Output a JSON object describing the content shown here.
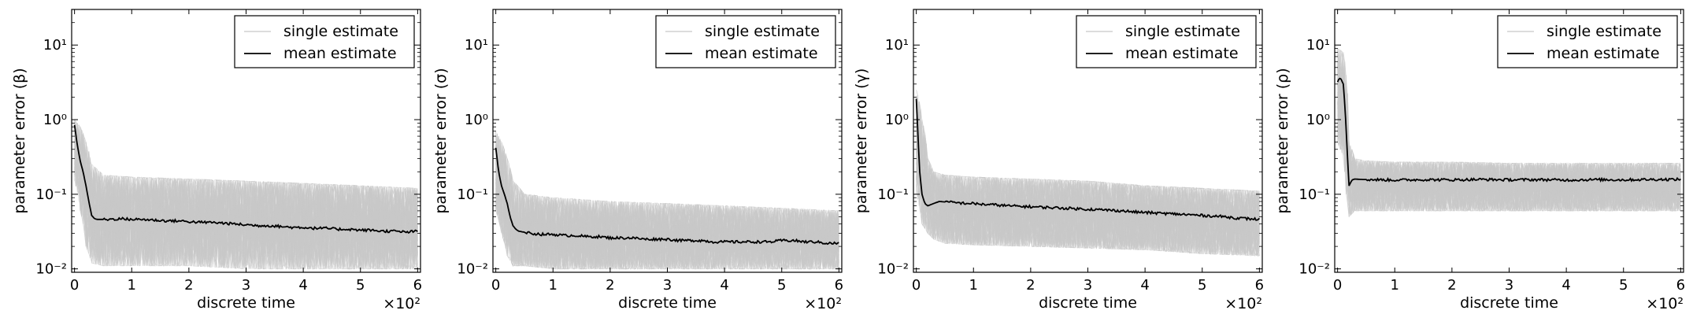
{
  "figure": {
    "colors": {
      "single": "#c8c8c8",
      "mean": "#000000",
      "axes": "#000000",
      "legend_edge": "#000000"
    }
  },
  "chart_data": [
    {
      "type": "line",
      "xlabel": "discrete time",
      "ylabel": "parameter error (β)",
      "x_multiplier_label": "×10²",
      "xlim": [
        -0.05,
        6.05
      ],
      "ylim": [
        0.009,
        30
      ],
      "yscale": "log",
      "xticks": [
        0,
        1,
        2,
        3,
        4,
        5,
        6
      ],
      "xtick_labels": [
        "0",
        "1",
        "2",
        "3",
        "4",
        "5",
        "6"
      ],
      "yticks": [
        0.01,
        0.1,
        1,
        10
      ],
      "ytick_labels": [
        "10⁻²",
        "10⁻¹",
        "10⁰",
        "10¹"
      ],
      "legend": {
        "position": "upper right",
        "entries": [
          "single estimate",
          "mean estimate"
        ]
      },
      "series": [
        {
          "name": "mean estimate",
          "x": [
            0.0,
            0.05,
            0.1,
            0.15,
            0.2,
            0.25,
            0.3,
            0.35,
            0.4,
            0.6,
            0.8,
            1.0,
            1.2,
            1.4,
            1.6,
            1.8,
            2.0,
            2.2,
            2.4,
            2.6,
            2.8,
            3.0,
            3.2,
            3.4,
            3.6,
            3.8,
            4.0,
            4.2,
            4.4,
            4.6,
            4.8,
            5.0,
            5.2,
            5.4,
            5.6,
            5.8,
            6.0
          ],
          "y": [
            0.85,
            0.45,
            0.28,
            0.2,
            0.13,
            0.08,
            0.052,
            0.047,
            0.046,
            0.046,
            0.047,
            0.046,
            0.046,
            0.045,
            0.044,
            0.044,
            0.043,
            0.042,
            0.042,
            0.041,
            0.04,
            0.039,
            0.038,
            0.038,
            0.037,
            0.036,
            0.036,
            0.035,
            0.035,
            0.034,
            0.034,
            0.033,
            0.033,
            0.032,
            0.032,
            0.031,
            0.032
          ]
        },
        {
          "name": "single estimate",
          "band_x": [
            0.0,
            0.1,
            0.2,
            0.3,
            0.5,
            1.0,
            2.0,
            3.0,
            4.0,
            5.0,
            6.0
          ],
          "band_low": [
            0.15,
            0.06,
            0.02,
            0.012,
            0.011,
            0.011,
            0.011,
            0.01,
            0.01,
            0.01,
            0.01
          ],
          "band_high": [
            1.0,
            0.8,
            0.5,
            0.25,
            0.18,
            0.17,
            0.16,
            0.15,
            0.14,
            0.13,
            0.12
          ],
          "count": 100
        }
      ]
    },
    {
      "type": "line",
      "xlabel": "discrete time",
      "ylabel": "parameter error (σ)",
      "x_multiplier_label": "×10²",
      "xlim": [
        -0.05,
        6.05
      ],
      "ylim": [
        0.009,
        30
      ],
      "yscale": "log",
      "xticks": [
        0,
        1,
        2,
        3,
        4,
        5,
        6
      ],
      "xtick_labels": [
        "0",
        "1",
        "2",
        "3",
        "4",
        "5",
        "6"
      ],
      "yticks": [
        0.01,
        0.1,
        1,
        10
      ],
      "ytick_labels": [
        "10⁻²",
        "10⁻¹",
        "10⁰",
        "10¹"
      ],
      "legend": {
        "position": "upper right",
        "entries": [
          "single estimate",
          "mean estimate"
        ]
      },
      "series": [
        {
          "name": "mean estimate",
          "x": [
            0.0,
            0.05,
            0.1,
            0.15,
            0.2,
            0.25,
            0.3,
            0.35,
            0.4,
            0.6,
            0.8,
            1.0,
            1.2,
            1.4,
            1.6,
            1.8,
            2.0,
            2.2,
            2.4,
            2.6,
            2.8,
            3.0,
            3.2,
            3.4,
            3.6,
            3.8,
            4.0,
            4.2,
            4.4,
            4.6,
            4.8,
            5.0,
            5.2,
            5.4,
            5.6,
            5.8,
            6.0
          ],
          "y": [
            0.42,
            0.2,
            0.13,
            0.1,
            0.075,
            0.05,
            0.038,
            0.034,
            0.032,
            0.03,
            0.029,
            0.029,
            0.028,
            0.028,
            0.027,
            0.027,
            0.026,
            0.026,
            0.026,
            0.025,
            0.025,
            0.025,
            0.024,
            0.024,
            0.024,
            0.023,
            0.023,
            0.023,
            0.023,
            0.023,
            0.023,
            0.024,
            0.024,
            0.023,
            0.023,
            0.022,
            0.022
          ]
        },
        {
          "name": "single estimate",
          "band_x": [
            0.0,
            0.1,
            0.2,
            0.3,
            0.5,
            1.0,
            2.0,
            3.0,
            4.0,
            5.0,
            6.0
          ],
          "band_low": [
            0.06,
            0.03,
            0.015,
            0.011,
            0.011,
            0.01,
            0.01,
            0.01,
            0.01,
            0.01,
            0.01
          ],
          "band_high": [
            0.7,
            0.5,
            0.3,
            0.15,
            0.1,
            0.09,
            0.08,
            0.075,
            0.07,
            0.065,
            0.06
          ]
        }
      ]
    },
    {
      "type": "line",
      "xlabel": "discrete time",
      "ylabel": "parameter error (γ)",
      "x_multiplier_label": "×10²",
      "xlim": [
        -0.05,
        6.05
      ],
      "ylim": [
        0.009,
        30
      ],
      "yscale": "log",
      "xticks": [
        0,
        1,
        2,
        3,
        4,
        5,
        6
      ],
      "xtick_labels": [
        "0",
        "1",
        "2",
        "3",
        "4",
        "5",
        "6"
      ],
      "yticks": [
        0.01,
        0.1,
        1,
        10
      ],
      "ytick_labels": [
        "10⁻²",
        "10⁻¹",
        "10⁰",
        "10¹"
      ],
      "legend": {
        "position": "upper right",
        "entries": [
          "single estimate",
          "mean estimate"
        ]
      },
      "series": [
        {
          "name": "mean estimate",
          "x": [
            0.0,
            0.03,
            0.06,
            0.1,
            0.15,
            0.2,
            0.3,
            0.4,
            0.6,
            0.8,
            1.0,
            1.2,
            1.4,
            1.6,
            1.8,
            2.0,
            2.2,
            2.4,
            2.6,
            2.8,
            3.0,
            3.2,
            3.4,
            3.6,
            3.8,
            4.0,
            4.2,
            4.4,
            4.6,
            4.8,
            5.0,
            5.2,
            5.4,
            5.6,
            5.8,
            6.0
          ],
          "y": [
            1.9,
            0.6,
            0.2,
            0.1,
            0.075,
            0.07,
            0.075,
            0.08,
            0.078,
            0.076,
            0.075,
            0.073,
            0.072,
            0.07,
            0.069,
            0.068,
            0.067,
            0.066,
            0.065,
            0.064,
            0.063,
            0.062,
            0.061,
            0.06,
            0.058,
            0.057,
            0.056,
            0.055,
            0.054,
            0.053,
            0.052,
            0.051,
            0.05,
            0.048,
            0.047,
            0.046
          ]
        },
        {
          "name": "single estimate",
          "band_x": [
            0.0,
            0.1,
            0.2,
            0.3,
            0.5,
            1.0,
            2.0,
            3.0,
            4.0,
            5.0,
            6.0
          ],
          "band_low": [
            0.1,
            0.04,
            0.03,
            0.025,
            0.022,
            0.021,
            0.02,
            0.019,
            0.018,
            0.016,
            0.015
          ],
          "band_high": [
            2.5,
            1.0,
            0.3,
            0.2,
            0.18,
            0.17,
            0.16,
            0.15,
            0.13,
            0.12,
            0.11
          ]
        }
      ]
    },
    {
      "type": "line",
      "xlabel": "discrete time",
      "ylabel": "parameter error (ρ)",
      "x_multiplier_label": "×10²",
      "xlim": [
        -0.05,
        6.05
      ],
      "ylim": [
        0.009,
        30
      ],
      "yscale": "log",
      "xticks": [
        0,
        1,
        2,
        3,
        4,
        5,
        6
      ],
      "xtick_labels": [
        "0",
        "1",
        "2",
        "3",
        "4",
        "5",
        "6"
      ],
      "yticks": [
        0.01,
        0.1,
        1,
        10
      ],
      "ytick_labels": [
        "10⁻²",
        "10⁻¹",
        "10⁰",
        "10¹"
      ],
      "legend": {
        "position": "upper right",
        "entries": [
          "single estimate",
          "mean estimate"
        ]
      },
      "series": [
        {
          "name": "mean estimate",
          "x": [
            0.0,
            0.03,
            0.06,
            0.1,
            0.13,
            0.16,
            0.2,
            0.25,
            0.3,
            0.4,
            0.6,
            1.0,
            1.5,
            2.0,
            2.5,
            3.0,
            3.5,
            4.0,
            4.5,
            5.0,
            5.5,
            6.0
          ],
          "y": [
            3.2,
            3.6,
            3.5,
            3.0,
            1.5,
            0.5,
            0.13,
            0.155,
            0.16,
            0.158,
            0.157,
            0.155,
            0.157,
            0.156,
            0.158,
            0.156,
            0.157,
            0.155,
            0.157,
            0.156,
            0.158,
            0.158
          ]
        },
        {
          "name": "single estimate",
          "band_x": [
            0.0,
            0.1,
            0.15,
            0.2,
            0.3,
            0.5,
            1.0,
            2.0,
            3.0,
            4.0,
            5.0,
            6.0
          ],
          "band_low": [
            0.5,
            0.3,
            0.1,
            0.05,
            0.06,
            0.06,
            0.06,
            0.06,
            0.06,
            0.06,
            0.06,
            0.06
          ],
          "band_high": [
            9.0,
            8.0,
            4.0,
            0.5,
            0.3,
            0.28,
            0.27,
            0.27,
            0.26,
            0.26,
            0.26,
            0.26
          ]
        }
      ]
    }
  ]
}
